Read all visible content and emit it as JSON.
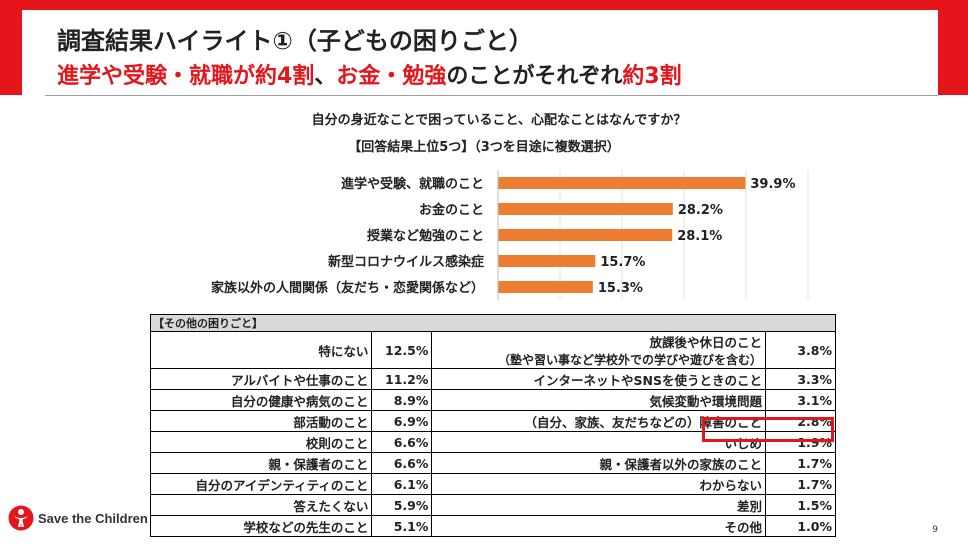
{
  "header": {
    "title": "調査結果ハイライト①（子どもの困りごと）",
    "subtitle_parts": [
      {
        "text": "進学や受験・就職が約4割",
        "style": "red"
      },
      {
        "text": "、",
        "style": "dark"
      },
      {
        "text": "お金・勉強",
        "style": "red"
      },
      {
        "text": "のことがそれぞれ",
        "style": "dark"
      },
      {
        "text": "約3割",
        "style": "red"
      }
    ]
  },
  "question": {
    "line1": "自分の身近なことで困っていること、心配なことはなんですか？",
    "line2": "【回答結果上位5つ】（3つを目途に複数選択）"
  },
  "colors": {
    "accent": "#e5161b",
    "bar": "#ed7d31"
  },
  "chart_data": {
    "type": "bar",
    "orientation": "horizontal",
    "categories": [
      "進学や受験、就職のこと",
      "お金のこと",
      "授業など勉強のこと",
      "新型コロナウイルス感染症",
      "家族以外の人間関係（友だち・恋愛関係など）"
    ],
    "values": [
      39.9,
      28.2,
      28.1,
      15.7,
      15.3
    ],
    "value_labels": [
      "39.9%",
      "28.2%",
      "28.1%",
      "15.7%",
      "15.3%"
    ],
    "xlim": [
      0,
      50
    ],
    "grid": true
  },
  "other_table": {
    "header": "【その他の困りごと】",
    "rows": [
      {
        "label": "特にない",
        "value": "12.5%",
        "label2": "放課後や休日のこと",
        "label2_sub": "（塾や習い事など学校外での学びや遊びを含む）",
        "value2": "3.8%"
      },
      {
        "label": "アルバイトや仕事のこと",
        "value": "11.2%",
        "label2": "インターネットやSNSを使うときのこと",
        "value2": "3.3%"
      },
      {
        "label": "自分の健康や病気のこと",
        "value": "8.9%",
        "label2": "気候変動や環境問題",
        "value2": "3.1%"
      },
      {
        "label": "部活動のこと",
        "value": "6.9%",
        "label2": "（自分、家族、友だちなどの）障害のこと",
        "value2": "2.8%"
      },
      {
        "label": "校則のこと",
        "value": "6.6%",
        "label2": "いじめ",
        "value2": "1.9%"
      },
      {
        "label": "親・保護者のこと",
        "value": "6.6%",
        "label2": "親・保護者以外の家族のこと",
        "value2": "1.7%"
      },
      {
        "label": "自分のアイデンティティのこと",
        "value": "6.1%",
        "label2": "わからない",
        "value2": "1.7%"
      },
      {
        "label": "答えたくない",
        "value": "5.9%",
        "label2": "差別",
        "value2": "1.5%"
      },
      {
        "label": "学校などの先生のこと",
        "value": "5.1%",
        "label2": "その他",
        "value2": "1.0%"
      }
    ]
  },
  "footer": {
    "logo_text": "Save the Children",
    "page_number": "9"
  }
}
